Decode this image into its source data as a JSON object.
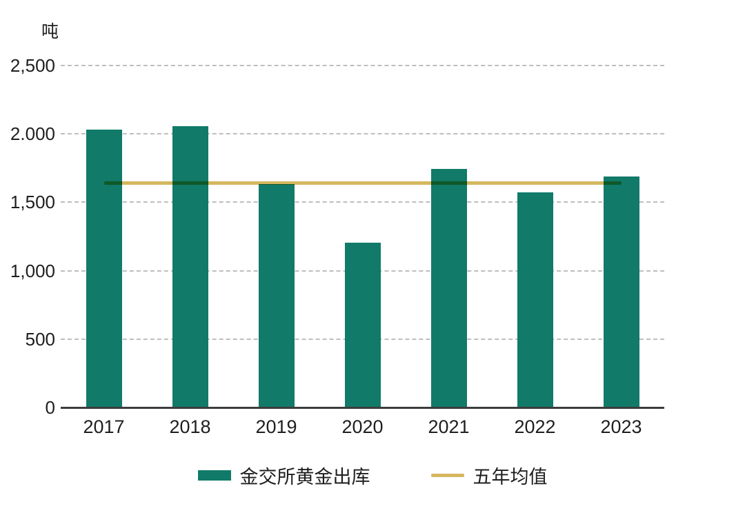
{
  "chart_data": {
    "type": "bar",
    "title": "",
    "unit_label": "吨",
    "categories": [
      "2017",
      "2018",
      "2019",
      "2020",
      "2021",
      "2022",
      "2023"
    ],
    "series": [
      {
        "name": "金交所黄金出库",
        "type": "bar",
        "color": "#117a69",
        "values": [
          2030,
          2055,
          1635,
          1205,
          1745,
          1575,
          1687
        ]
      },
      {
        "name": "五年均值",
        "type": "line",
        "color": "#d6b760",
        "value": 1643
      }
    ],
    "ylim": [
      0,
      2500
    ],
    "yticks": [
      {
        "value": 0,
        "label": "0"
      },
      {
        "value": 500,
        "label": "500"
      },
      {
        "value": 1000,
        "label": "1,000"
      },
      {
        "value": 1500,
        "label": "1,500"
      },
      {
        "value": 2000,
        "label": "2.000"
      },
      {
        "value": 2500,
        "label": "2,500"
      }
    ],
    "grid": "horizontal-dashed",
    "legend_position": "bottom"
  },
  "legend": {
    "bar_label": "金交所黄金出库",
    "line_label": "五年均值"
  },
  "colors": {
    "bar": "#117a69",
    "line": "#d6b760",
    "axis": "#3c3c3c",
    "grid": "#bdbdbd",
    "text": "#1e1e1e"
  }
}
